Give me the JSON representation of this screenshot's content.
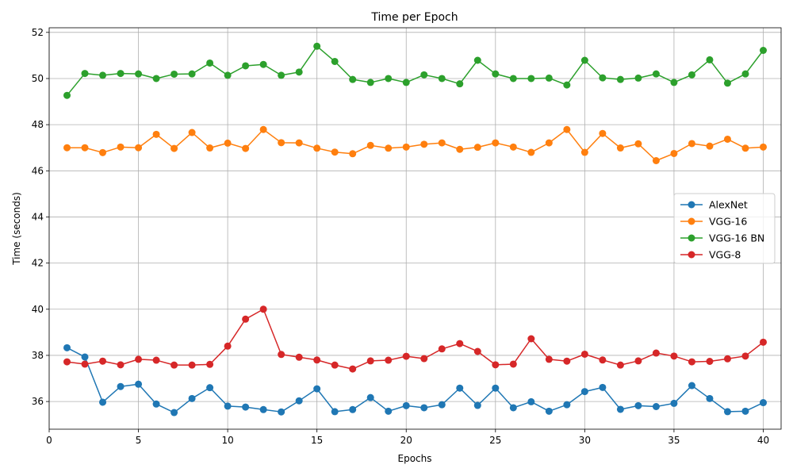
{
  "chart_data": {
    "type": "line",
    "title": "Time per Epoch",
    "xlabel": "Epochs",
    "ylabel": "Time (seconds)",
    "xlim": [
      0,
      41
    ],
    "ylim": [
      34.8,
      52.2
    ],
    "xticks": [
      0,
      5,
      10,
      15,
      20,
      25,
      30,
      35,
      40
    ],
    "yticks": [
      36,
      38,
      40,
      42,
      44,
      46,
      48,
      50,
      52
    ],
    "grid": true,
    "legend_position": "center-right",
    "markers": "circle",
    "x": [
      1,
      2,
      3,
      4,
      5,
      6,
      7,
      8,
      9,
      10,
      11,
      12,
      13,
      14,
      15,
      16,
      17,
      18,
      19,
      20,
      21,
      22,
      23,
      24,
      25,
      26,
      27,
      28,
      29,
      30,
      31,
      32,
      33,
      34,
      35,
      36,
      37,
      38,
      39,
      40
    ],
    "series": [
      {
        "name": "AlexNet",
        "color": "#1f77b4",
        "values": [
          38.33,
          37.93,
          35.97,
          36.65,
          36.75,
          35.89,
          35.52,
          36.13,
          36.6,
          35.8,
          35.76,
          35.65,
          35.55,
          36.03,
          36.55,
          35.56,
          35.65,
          36.17,
          35.58,
          35.82,
          35.73,
          35.86,
          36.58,
          35.83,
          36.58,
          35.73,
          35.99,
          35.58,
          35.86,
          36.43,
          36.61,
          35.66,
          35.82,
          35.78,
          35.92,
          36.69,
          36.13,
          35.56,
          35.58,
          35.95
        ]
      },
      {
        "name": "VGG-16",
        "color": "#ff7f0e",
        "values": [
          47.0,
          47.0,
          46.79,
          47.03,
          47.0,
          47.58,
          46.97,
          47.66,
          46.99,
          47.2,
          46.97,
          47.79,
          47.22,
          47.21,
          46.98,
          46.81,
          46.74,
          47.1,
          46.98,
          47.03,
          47.15,
          47.21,
          46.93,
          47.02,
          47.21,
          47.03,
          46.8,
          47.21,
          47.79,
          46.8,
          47.62,
          46.99,
          47.17,
          46.44,
          46.75,
          47.18,
          47.07,
          47.37,
          46.98,
          47.03
        ]
      },
      {
        "name": "VGG-16 BN",
        "color": "#2ca02c",
        "values": [
          49.27,
          50.22,
          50.14,
          50.22,
          50.2,
          50.0,
          50.19,
          50.2,
          50.67,
          50.14,
          50.55,
          50.61,
          50.14,
          50.28,
          51.4,
          50.74,
          49.96,
          49.83,
          50.0,
          49.83,
          50.16,
          50.0,
          49.77,
          50.79,
          50.2,
          50.0,
          50.0,
          50.02,
          49.72,
          50.79,
          50.03,
          49.96,
          50.02,
          50.2,
          49.83,
          50.16,
          50.81,
          49.8,
          50.2,
          51.22
        ]
      },
      {
        "name": "VGG-8",
        "color": "#d62728",
        "values": [
          37.72,
          37.62,
          37.75,
          37.59,
          37.83,
          37.79,
          37.58,
          37.58,
          37.61,
          38.4,
          39.57,
          40.0,
          38.04,
          37.92,
          37.8,
          37.58,
          37.41,
          37.76,
          37.79,
          37.96,
          37.86,
          38.28,
          38.51,
          38.17,
          37.59,
          37.62,
          38.72,
          37.83,
          37.75,
          38.05,
          37.8,
          37.58,
          37.76,
          38.1,
          37.97,
          37.72,
          37.74,
          37.85,
          37.97,
          38.57
        ]
      }
    ]
  }
}
